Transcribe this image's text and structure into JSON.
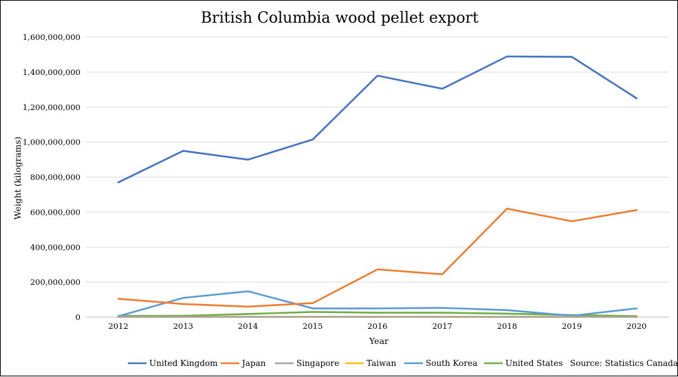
{
  "chart_data": {
    "type": "line",
    "title": "British Columbia wood pellet export",
    "xlabel": "Year",
    "ylabel": "Weight (kilograms)",
    "ylim": [
      0,
      1600000000
    ],
    "y_ticks": [
      "0",
      "200,000,000",
      "400,000,000",
      "600,000,000",
      "800,000,000",
      "1,000,000,000",
      "1,200,000,000",
      "1,400,000,000",
      "1,600,000,000"
    ],
    "y_tick_values": [
      0,
      200000000,
      400000000,
      600000000,
      800000000,
      1000000000,
      1200000000,
      1400000000,
      1600000000
    ],
    "categories": [
      "2012",
      "2013",
      "2014",
      "2015",
      "2016",
      "2017",
      "2018",
      "2019",
      "2020"
    ],
    "grid": true,
    "legend_position": "bottom",
    "series": [
      {
        "name": "United Kingdom",
        "color": "#4472C4",
        "values": [
          770000000,
          950000000,
          900000000,
          1015000000,
          1380000000,
          1305000000,
          1490000000,
          1487000000,
          1250000000
        ]
      },
      {
        "name": "Japan",
        "color": "#ED7D31",
        "values": [
          105000000,
          75000000,
          60000000,
          80000000,
          273000000,
          245000000,
          620000000,
          548000000,
          612000000
        ]
      },
      {
        "name": "Singapore",
        "color": "#A5A5A5",
        "values": [
          2000000,
          2000000,
          2000000,
          2000000,
          2000000,
          2000000,
          2000000,
          2000000,
          2000000
        ]
      },
      {
        "name": "Taiwan",
        "color": "#FFC000",
        "values": [
          1000000,
          1000000,
          1000000,
          1000000,
          1000000,
          1000000,
          1000000,
          1000000,
          1000000
        ]
      },
      {
        "name": "South Korea",
        "color": "#5B9BD5",
        "values": [
          5000000,
          110000000,
          148000000,
          50000000,
          50000000,
          53000000,
          40000000,
          8000000,
          50000000
        ]
      },
      {
        "name": "United States",
        "color": "#70AD47",
        "values": [
          8000000,
          8000000,
          18000000,
          30000000,
          25000000,
          25000000,
          20000000,
          12000000,
          6000000
        ]
      }
    ],
    "source_note": "Source: Statistics Canada"
  }
}
